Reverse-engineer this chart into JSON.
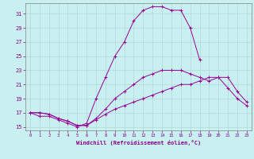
{
  "xlabel": "Windchill (Refroidissement éolien,°C)",
  "bg_color": "#c8f0f0",
  "grid_color": "#b0d8d8",
  "line_color": "#990099",
  "xlim": [
    -0.5,
    23.5
  ],
  "ylim": [
    14.5,
    32.5
  ],
  "xticks": [
    0,
    1,
    2,
    3,
    4,
    5,
    6,
    7,
    8,
    9,
    10,
    11,
    12,
    13,
    14,
    15,
    16,
    17,
    18,
    19,
    20,
    21,
    22,
    23
  ],
  "yticks": [
    15,
    17,
    19,
    21,
    23,
    25,
    27,
    29,
    31
  ],
  "line1_x": [
    0,
    1,
    2,
    3,
    4,
    5,
    6,
    7,
    8,
    9,
    10,
    11,
    12,
    13,
    14,
    15,
    16,
    17,
    18
  ],
  "line1_y": [
    17,
    16.5,
    16.5,
    16,
    15.5,
    15,
    15.5,
    19,
    22,
    25,
    27,
    30,
    31.5,
    32,
    32,
    31.5,
    31.5,
    29,
    24.5
  ],
  "line2_x": [
    0,
    1,
    2,
    3,
    4,
    5,
    6,
    7,
    8,
    9,
    10,
    11,
    12,
    13,
    14,
    15,
    16,
    17,
    18,
    19,
    20,
    21,
    22,
    23
  ],
  "line2_y": [
    17,
    17,
    16.8,
    16.2,
    15.8,
    15.2,
    15.2,
    16.2,
    17.5,
    19,
    20,
    21,
    22,
    22.5,
    23,
    23,
    23,
    22.5,
    22,
    21.5,
    22,
    22,
    20,
    18.5
  ],
  "line3_x": [
    0,
    1,
    2,
    3,
    4,
    5,
    6,
    7,
    8,
    9,
    10,
    11,
    12,
    13,
    14,
    15,
    16,
    17,
    18,
    19,
    20,
    21,
    22,
    23
  ],
  "line3_y": [
    17,
    17,
    16.8,
    16.2,
    15.8,
    15.2,
    15.2,
    16,
    16.8,
    17.5,
    18,
    18.5,
    19,
    19.5,
    20,
    20.5,
    21,
    21,
    21.5,
    22,
    22,
    20.5,
    19,
    18
  ]
}
